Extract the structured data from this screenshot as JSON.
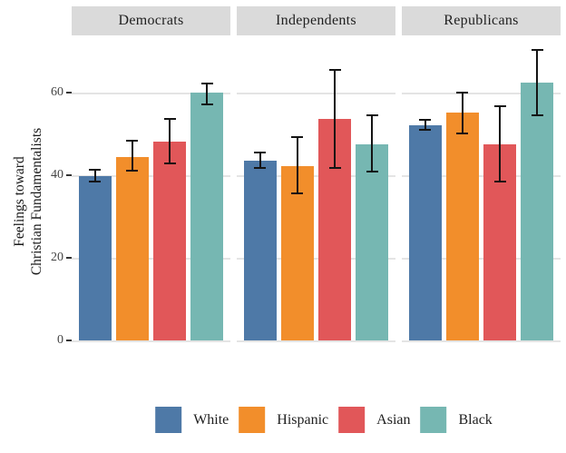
{
  "chart_data": {
    "type": "bar",
    "title": "",
    "ylabel_line1": "Feelings toward",
    "ylabel_line2": "Christian Fundamentalists",
    "yticks": [
      "0",
      "20",
      "40",
      "60"
    ],
    "ytick_values": [
      0,
      20,
      40,
      60
    ],
    "ylim": [
      0,
      71.5
    ],
    "grid": "horizontal",
    "legend_position": "bottom",
    "error_bars": true,
    "series_labels": [
      "White",
      "Hispanic",
      "Asian",
      "Black"
    ],
    "series_colors": [
      "#4e79a7",
      "#f28e2b",
      "#e15759",
      "#76b7b2"
    ],
    "facets": [
      {
        "label": "Democrats",
        "bars": [
          {
            "group": "White",
            "value": 39.8,
            "ci_low": 38.4,
            "ci_high": 41.3
          },
          {
            "group": "Hispanic",
            "value": 44.4,
            "ci_low": 41.1,
            "ci_high": 48.4
          },
          {
            "group": "Asian",
            "value": 48.1,
            "ci_low": 42.9,
            "ci_high": 53.6
          },
          {
            "group": "Black",
            "value": 60.0,
            "ci_low": 57.1,
            "ci_high": 62.2
          }
        ]
      },
      {
        "label": "Independents",
        "bars": [
          {
            "group": "White",
            "value": 43.5,
            "ci_low": 41.8,
            "ci_high": 45.5
          },
          {
            "group": "Hispanic",
            "value": 42.2,
            "ci_low": 35.6,
            "ci_high": 49.2
          },
          {
            "group": "Asian",
            "value": 53.6,
            "ci_low": 41.8,
            "ci_high": 65.5
          },
          {
            "group": "Black",
            "value": 47.5,
            "ci_low": 40.9,
            "ci_high": 54.5
          }
        ]
      },
      {
        "label": "Republicans",
        "bars": [
          {
            "group": "White",
            "value": 52.1,
            "ci_low": 51.0,
            "ci_high": 53.4
          },
          {
            "group": "Hispanic",
            "value": 55.2,
            "ci_low": 50.1,
            "ci_high": 60.0
          },
          {
            "group": "Asian",
            "value": 47.5,
            "ci_low": 38.5,
            "ci_high": 56.7
          },
          {
            "group": "Black",
            "value": 62.4,
            "ci_low": 54.5,
            "ci_high": 70.3
          }
        ]
      }
    ],
    "colors": {
      "strip_background": "#dadada",
      "gridline": "#e4e4e4",
      "error_bar": "#141414",
      "tick": "#333333",
      "tick_label": "#444444",
      "text": "#1f1f1f"
    }
  },
  "legend": {
    "items": [
      {
        "label": "White",
        "color": "#4e79a7"
      },
      {
        "label": "Hispanic",
        "color": "#f28e2b"
      },
      {
        "label": "Asian",
        "color": "#e15759"
      },
      {
        "label": "Black",
        "color": "#76b7b2"
      }
    ]
  }
}
